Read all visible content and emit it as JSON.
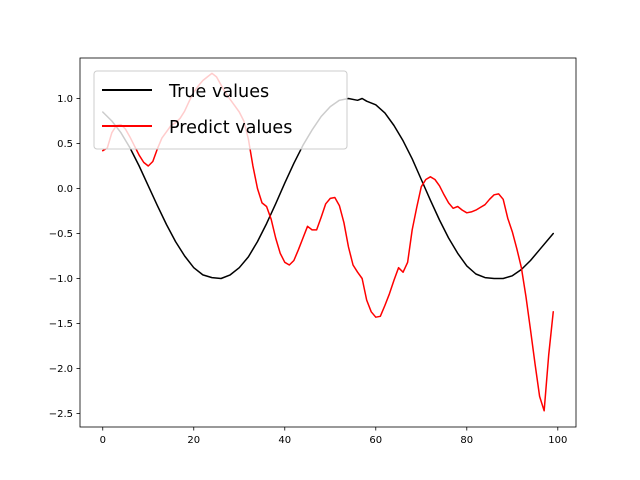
{
  "chart_data": {
    "type": "line",
    "title": "",
    "xlabel": "",
    "ylabel": "",
    "xlim": [
      -5,
      104
    ],
    "ylim": [
      -2.65,
      1.45
    ],
    "xticks": [
      0,
      20,
      40,
      60,
      80,
      100
    ],
    "yticks": [
      1.0,
      0.5,
      0.0,
      -0.5,
      -1.0,
      -1.5,
      -2.0,
      -2.5
    ],
    "xtick_labels": [
      "0",
      "20",
      "40",
      "60",
      "80",
      "100"
    ],
    "ytick_labels": [
      "1.0",
      "0.5",
      "0.0",
      "−0.5",
      "−1.0",
      "−1.5",
      "−2.0",
      "−2.5"
    ],
    "grid": false,
    "legend_position": "top-left",
    "series": [
      {
        "name": "True values",
        "color": "#000000",
        "x": [
          0,
          2,
          4,
          6,
          8,
          10,
          12,
          14,
          16,
          18,
          20,
          22,
          24,
          26,
          28,
          30,
          32,
          34,
          36,
          38,
          40,
          42,
          44,
          46,
          48,
          50,
          52,
          54,
          56,
          57,
          58,
          60,
          62,
          64,
          66,
          68,
          70,
          72,
          74,
          76,
          78,
          80,
          82,
          84,
          86,
          88,
          90,
          92,
          94,
          96,
          99
        ],
        "y": [
          0.85,
          0.75,
          0.62,
          0.45,
          0.25,
          0.03,
          -0.19,
          -0.4,
          -0.59,
          -0.75,
          -0.88,
          -0.96,
          -0.99,
          -1.0,
          -0.96,
          -0.88,
          -0.76,
          -0.59,
          -0.39,
          -0.17,
          0.06,
          0.28,
          0.48,
          0.65,
          0.8,
          0.91,
          0.98,
          1.0,
          0.98,
          1.0,
          0.97,
          0.93,
          0.84,
          0.7,
          0.53,
          0.33,
          0.1,
          -0.13,
          -0.35,
          -0.55,
          -0.72,
          -0.86,
          -0.95,
          -0.99,
          -1.0,
          -1.0,
          -0.97,
          -0.9,
          -0.8,
          -0.68,
          -0.5
        ]
      },
      {
        "name": "Predict values",
        "color": "#ff0000",
        "x": [
          0,
          1,
          2,
          3,
          4,
          5,
          6,
          7,
          8,
          9,
          10,
          11,
          12,
          13,
          14,
          15,
          16,
          17,
          18,
          19,
          20,
          21,
          22,
          23,
          24,
          25,
          26,
          27,
          28,
          29,
          30,
          31,
          32,
          33,
          34,
          35,
          36,
          37,
          38,
          39,
          40,
          41,
          42,
          43,
          44,
          45,
          46,
          47,
          48,
          49,
          50,
          51,
          52,
          53,
          54,
          55,
          56,
          57,
          58,
          59,
          60,
          61,
          62,
          63,
          64,
          65,
          66,
          67,
          68,
          69,
          70,
          71,
          72,
          73,
          74,
          75,
          76,
          77,
          78,
          79,
          80,
          81,
          82,
          83,
          84,
          85,
          86,
          87,
          88,
          89,
          90,
          91,
          92,
          93,
          94,
          95,
          96,
          97,
          98,
          99
        ],
        "y": [
          0.42,
          0.45,
          0.62,
          0.7,
          0.71,
          0.66,
          0.57,
          0.47,
          0.37,
          0.29,
          0.25,
          0.3,
          0.44,
          0.56,
          0.63,
          0.7,
          0.73,
          0.78,
          0.86,
          0.97,
          1.07,
          1.14,
          1.2,
          1.24,
          1.28,
          1.24,
          1.15,
          1.06,
          0.99,
          0.92,
          0.85,
          0.75,
          0.55,
          0.25,
          0.0,
          -0.16,
          -0.2,
          -0.34,
          -0.55,
          -0.72,
          -0.82,
          -0.85,
          -0.8,
          -0.68,
          -0.55,
          -0.42,
          -0.46,
          -0.46,
          -0.32,
          -0.17,
          -0.11,
          -0.1,
          -0.19,
          -0.38,
          -0.65,
          -0.85,
          -0.93,
          -1.0,
          -1.24,
          -1.37,
          -1.43,
          -1.42,
          -1.3,
          -1.17,
          -1.02,
          -0.88,
          -0.93,
          -0.82,
          -0.46,
          -0.21,
          0.02,
          0.1,
          0.13,
          0.1,
          0.03,
          -0.07,
          -0.16,
          -0.22,
          -0.2,
          -0.24,
          -0.27,
          -0.26,
          -0.24,
          -0.21,
          -0.18,
          -0.12,
          -0.07,
          -0.06,
          -0.12,
          -0.33,
          -0.48,
          -0.67,
          -0.88,
          -1.2,
          -1.57,
          -1.95,
          -2.31,
          -2.47,
          -1.85,
          -1.37
        ]
      }
    ]
  }
}
